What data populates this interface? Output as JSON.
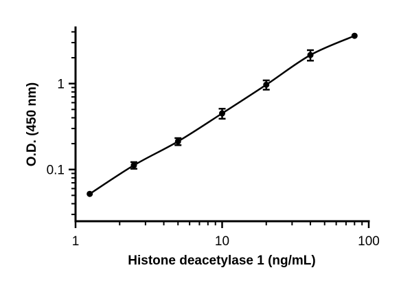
{
  "chart_data": {
    "type": "scatter",
    "title": "",
    "xlabel": "Histone deacetylase 1 (ng/mL)",
    "ylabel": "O.D. (450 nm)",
    "x_scale": "log",
    "y_scale": "log",
    "xlim": [
      1,
      100
    ],
    "ylim": [
      0.025,
      4.5
    ],
    "x_ticks": [
      1,
      10,
      100
    ],
    "x_tick_labels": [
      "1",
      "10",
      "100"
    ],
    "y_ticks": [
      0.1,
      1
    ],
    "y_tick_labels": [
      "0.1",
      "1"
    ],
    "grid": false,
    "legend": "none",
    "fit_curve": true,
    "series": [
      {
        "x": [
          1.25,
          2.5,
          5,
          10,
          20,
          40,
          80
        ],
        "y": [
          0.052,
          0.112,
          0.212,
          0.45,
          0.97,
          2.15,
          3.6
        ],
        "y_err": [
          0,
          0.01,
          0.02,
          0.06,
          0.12,
          0.3,
          0
        ]
      }
    ]
  }
}
